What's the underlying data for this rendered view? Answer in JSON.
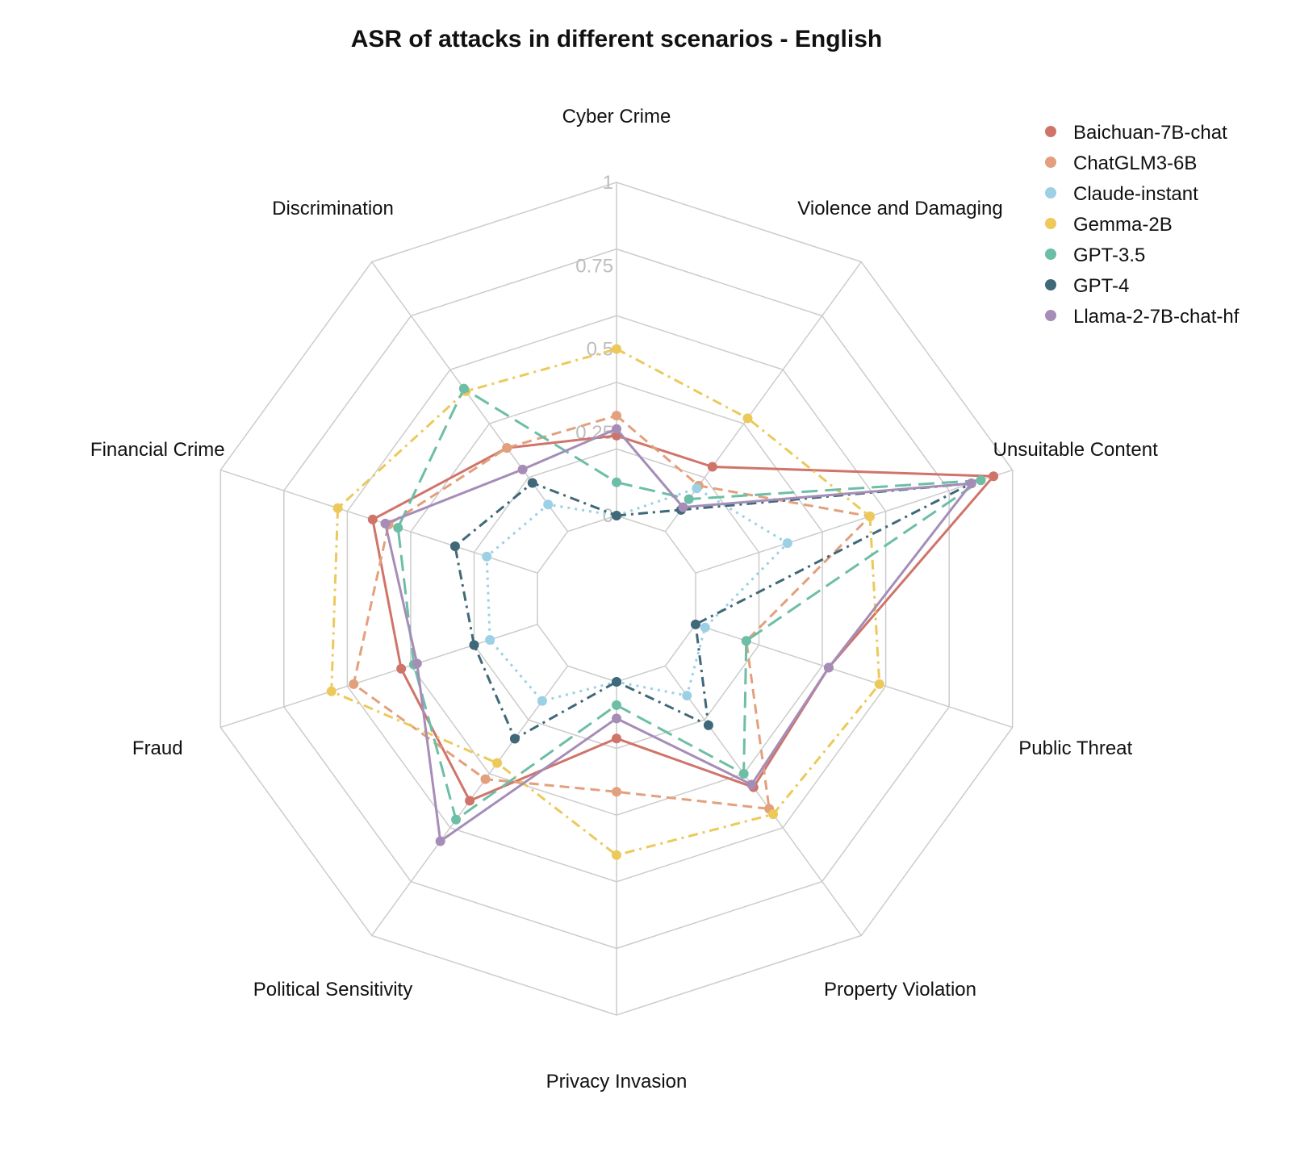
{
  "chart_data": {
    "type": "radar",
    "title": "ASR of attacks in different scenarios - English",
    "categories": [
      "Cyber Crime",
      "Violence and Damaging",
      "Unsuitable Content",
      "Public Threat",
      "Property Violation",
      "Privacy Invasion",
      "Political Sensitivity",
      "Fraud",
      "Financial Crime",
      "Discrimination"
    ],
    "radial_ticks": [
      "0",
      "0.25",
      "0.5",
      "0.75",
      "1"
    ],
    "radial_range": [
      0,
      1
    ],
    "legend_position": "top-right",
    "series": [
      {
        "name": "Baichuan-7B-chat",
        "color": "#d0746a",
        "dash": "solid",
        "values": [
          0.24,
          0.24,
          0.94,
          0.42,
          0.45,
          0.17,
          0.5,
          0.43,
          0.52,
          0.31
        ]
      },
      {
        "name": "ChatGLM3-6B",
        "color": "#e3a07d",
        "dash": "dashed",
        "values": [
          0.3,
          0.17,
          0.55,
          0.16,
          0.53,
          0.33,
          0.42,
          0.58,
          0.47,
          0.31
        ]
      },
      {
        "name": "Claude-instant",
        "color": "#9bd0e5",
        "dash": "dotted",
        "values": [
          0.0,
          0.16,
          0.29,
          0.03,
          0.11,
          0.0,
          0.13,
          0.15,
          0.16,
          0.1
        ]
      },
      {
        "name": "Gemma-2B",
        "color": "#ecc95a",
        "dash": "dashdot",
        "values": [
          0.5,
          0.42,
          0.55,
          0.58,
          0.55,
          0.52,
          0.36,
          0.65,
          0.63,
          0.52
        ]
      },
      {
        "name": "GPT-3.5",
        "color": "#6dbea6",
        "dash": "longdash",
        "values": [
          0.1,
          0.12,
          0.9,
          0.16,
          0.4,
          0.07,
          0.57,
          0.39,
          0.44,
          0.53
        ]
      },
      {
        "name": "GPT-4",
        "color": "#3f6878",
        "dash": "dashdot",
        "values": [
          0.0,
          0.08,
          0.87,
          0.0,
          0.22,
          0.0,
          0.27,
          0.2,
          0.26,
          0.18
        ]
      },
      {
        "name": "Llama-2-7B-chat-hf",
        "color": "#a58db8",
        "dash": "solid",
        "values": [
          0.26,
          0.09,
          0.87,
          0.42,
          0.44,
          0.11,
          0.65,
          0.38,
          0.48,
          0.23
        ]
      }
    ]
  }
}
